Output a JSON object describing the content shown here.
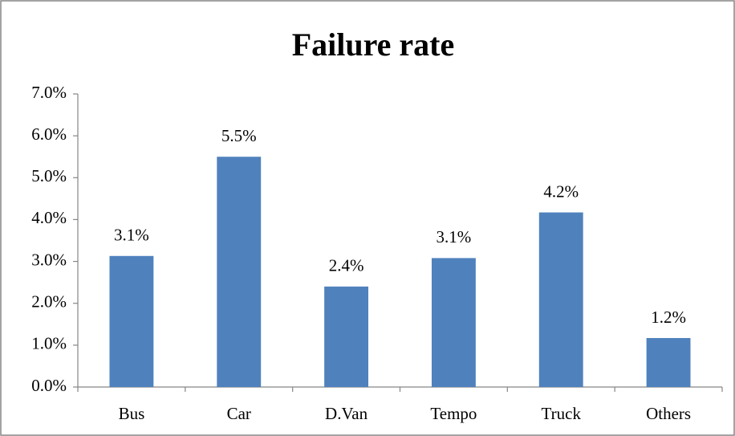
{
  "chart_data": {
    "type": "bar",
    "title": "Failure rate",
    "categories": [
      "Bus",
      "Car",
      "D.Van",
      "Tempo",
      "Truck",
      "Others"
    ],
    "values": [
      3.13,
      5.5,
      2.4,
      3.08,
      4.17,
      1.17
    ],
    "value_labels": [
      "3.1%",
      "5.5%",
      "2.4%",
      "3.1%",
      "4.2%",
      "1.2%"
    ],
    "color": "#4f81bd",
    "ylim": [
      0,
      7
    ],
    "yticks": [
      {
        "value": 0,
        "label": "0.0%"
      },
      {
        "value": 1,
        "label": "1.0%"
      },
      {
        "value": 2,
        "label": "2.0%"
      },
      {
        "value": 3,
        "label": "3.0%"
      },
      {
        "value": 4,
        "label": "4.0%"
      },
      {
        "value": 5,
        "label": "5.0%"
      },
      {
        "value": 6,
        "label": "6.0%"
      },
      {
        "value": 7,
        "label": "7.0%"
      }
    ],
    "grid": false
  }
}
